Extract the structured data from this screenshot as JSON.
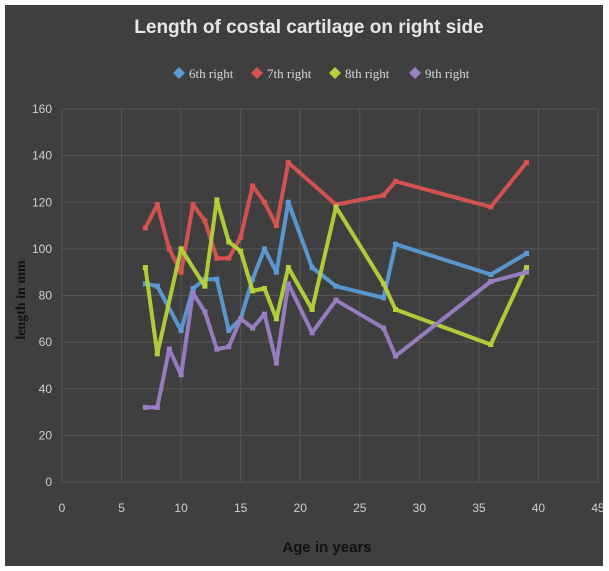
{
  "chart_data": {
    "type": "line",
    "title": "Length of costal cartilage on right side",
    "xlabel": "Age in years",
    "ylabel": "length in mm",
    "xlim": [
      0,
      45
    ],
    "ylim": [
      0,
      160
    ],
    "xticks": [
      0,
      5,
      10,
      15,
      20,
      25,
      30,
      35,
      40,
      45
    ],
    "yticks": [
      0,
      20,
      40,
      60,
      80,
      100,
      120,
      140,
      160
    ],
    "grid": true,
    "legend_position": "top",
    "background": "#3f3f3f",
    "series": [
      {
        "name": "6th right",
        "color": "#5b9bd5",
        "points": [
          [
            7,
            85
          ],
          [
            8,
            84
          ],
          [
            10,
            65
          ],
          [
            11,
            83
          ],
          [
            12,
            87
          ],
          [
            13,
            87
          ],
          [
            14,
            65
          ],
          [
            15,
            70
          ],
          [
            16,
            87
          ],
          [
            17,
            100
          ],
          [
            18,
            90
          ],
          [
            19,
            120
          ],
          [
            21,
            92
          ],
          [
            23,
            84
          ],
          [
            27,
            79
          ],
          [
            28,
            102
          ],
          [
            36,
            89
          ],
          [
            39,
            98
          ]
        ]
      },
      {
        "name": "7th right",
        "color": "#d9534f",
        "points": [
          [
            7,
            109
          ],
          [
            8,
            119
          ],
          [
            9,
            100
          ],
          [
            10,
            90
          ],
          [
            11,
            119
          ],
          [
            12,
            112
          ],
          [
            13,
            96
          ],
          [
            14,
            96
          ],
          [
            15,
            105
          ],
          [
            16,
            127
          ],
          [
            17,
            120
          ],
          [
            18,
            110
          ],
          [
            19,
            137
          ],
          [
            23,
            119
          ],
          [
            27,
            123
          ],
          [
            28,
            129
          ],
          [
            36,
            118
          ],
          [
            39,
            137
          ]
        ]
      },
      {
        "name": "8th right",
        "color": "#b5d33a",
        "points": [
          [
            7,
            92
          ],
          [
            8,
            55
          ],
          [
            10,
            100
          ],
          [
            12,
            84
          ],
          [
            13,
            121
          ],
          [
            14,
            103
          ],
          [
            15,
            99
          ],
          [
            16,
            82
          ],
          [
            17,
            83
          ],
          [
            18,
            70
          ],
          [
            19,
            92
          ],
          [
            21,
            74
          ],
          [
            23,
            118
          ],
          [
            27,
            85
          ],
          [
            28,
            74
          ],
          [
            36,
            59
          ],
          [
            39,
            92
          ]
        ]
      },
      {
        "name": "9th right",
        "color": "#9b7ec6",
        "points": [
          [
            7,
            32
          ],
          [
            8,
            32
          ],
          [
            9,
            57
          ],
          [
            10,
            46
          ],
          [
            11,
            81
          ],
          [
            12,
            73
          ],
          [
            13,
            57
          ],
          [
            14,
            58
          ],
          [
            15,
            70
          ],
          [
            16,
            66
          ],
          [
            17,
            72
          ],
          [
            18,
            51
          ],
          [
            19,
            85
          ],
          [
            21,
            64
          ],
          [
            23,
            78
          ],
          [
            27,
            66
          ],
          [
            28,
            54
          ],
          [
            36,
            86
          ],
          [
            39,
            90
          ]
        ]
      }
    ]
  }
}
